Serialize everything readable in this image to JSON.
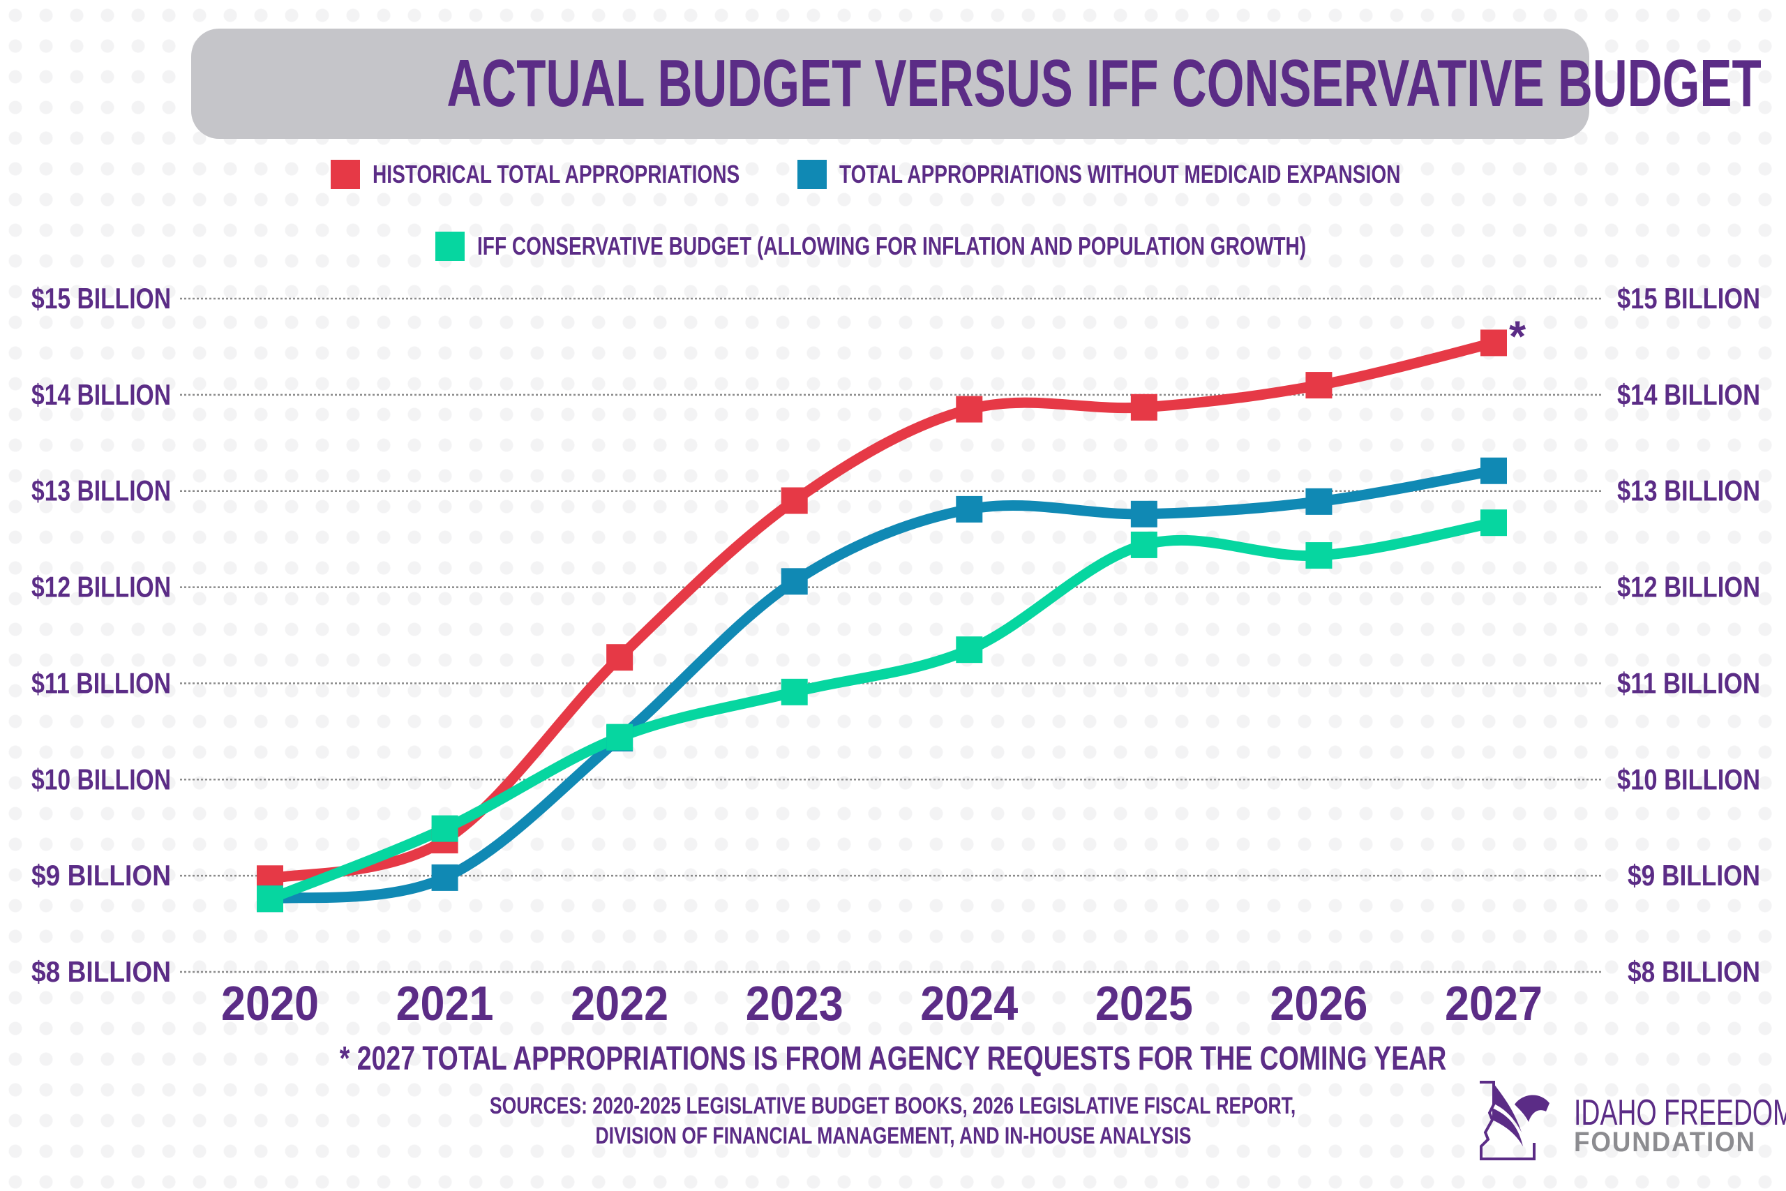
{
  "title": "ACTUAL BUDGET VERSUS IFF CONSERVATIVE BUDGET",
  "colors": {
    "title_text": "#5b2c86",
    "title_bar": "#c5c5c9",
    "historical": "#e63946",
    "without_medicaid": "#1089b4",
    "iff": "#06d6a0",
    "grid": "#8a8a8a"
  },
  "chart_data": {
    "type": "line",
    "title": "ACTUAL BUDGET VERSUS IFF CONSERVATIVE BUDGET",
    "categories": [
      "2020",
      "2021",
      "2022",
      "2023",
      "2024",
      "2025",
      "2026",
      "2027"
    ],
    "y_ticks": [
      "$8 BILLION",
      "$9 BILLION",
      "$10 BILLION",
      "$11 BILLION",
      "$12 BILLION",
      "$13 BILLION",
      "$14 BILLION",
      "$15 BILLION"
    ],
    "ylim": [
      8,
      15
    ],
    "y_unit": "billion USD",
    "grid": true,
    "dual_y_axis": true,
    "legend_placement": "top",
    "series": [
      {
        "name": "HISTORICAL TOTAL APPROPRIATIONS",
        "color": "#e63946",
        "values": [
          8.97,
          9.37,
          11.27,
          12.9,
          13.85,
          13.87,
          14.1,
          14.54
        ]
      },
      {
        "name": "TOTAL APPROPRIATIONS WITHOUT MEDICAID EXPANSION",
        "color": "#1089b4",
        "values": [
          8.76,
          8.98,
          10.43,
          12.06,
          12.81,
          12.76,
          12.89,
          13.21
        ]
      },
      {
        "name": "IFF CONSERVATIVE BUDGET (ALLOWING FOR INFLATION AND POPULATION GROWTH)",
        "color": "#06d6a0",
        "values": [
          8.76,
          9.49,
          10.44,
          10.91,
          11.35,
          12.44,
          12.33,
          12.67
        ]
      }
    ],
    "annotation": "*"
  },
  "footnote": "* 2027 TOTAL APPROPRIATIONS IS FROM AGENCY REQUESTS FOR THE COMING YEAR",
  "sources": [
    "SOURCES: 2020-2025 LEGISLATIVE BUDGET BOOKS, 2026 LEGISLATIVE FISCAL REPORT,",
    "DIVISION OF FINANCIAL MANAGEMENT, AND IN-HOUSE ANALYSIS"
  ],
  "logo": {
    "line1": "IDAHO FREEDOM",
    "line2": "FOUNDATION",
    "icon": "idaho-eagle-logo"
  }
}
